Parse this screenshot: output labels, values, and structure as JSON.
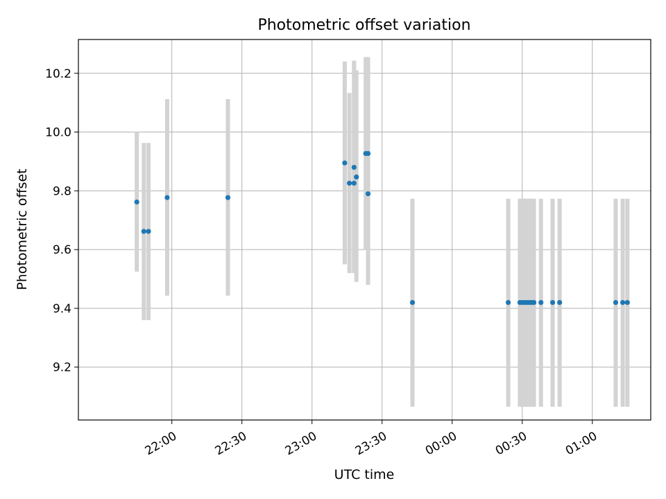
{
  "chart_data": {
    "type": "scatter",
    "title": "Photometric offset variation",
    "xlabel": "UTC time",
    "ylabel": "Photometric offset",
    "x_unit": "UTC time (HH:MM)",
    "xlim": [
      "21:20",
      "01:25"
    ],
    "ylim": [
      9.02,
      10.315
    ],
    "xticks": [
      "22:00",
      "22:30",
      "23:00",
      "23:30",
      "00:00",
      "00:30",
      "01:00"
    ],
    "yticks": [
      9.2,
      9.4,
      9.6,
      9.8,
      10.0,
      10.2
    ],
    "ytick_labels": [
      "9.2",
      "9.4",
      "9.6",
      "9.8",
      "10.0",
      "10.2"
    ],
    "grid": true,
    "colors": {
      "marker": "#1f77b4",
      "errorbar": "#d3d3d3",
      "grid": "#b0b0b0"
    },
    "points": [
      {
        "t": "21:45",
        "y": 9.762,
        "lo": 9.525,
        "hi": 10.0
      },
      {
        "t": "21:48",
        "y": 9.662,
        "lo": 9.36,
        "hi": 9.963
      },
      {
        "t": "21:50",
        "y": 9.662,
        "lo": 9.36,
        "hi": 9.963
      },
      {
        "t": "21:58",
        "y": 9.777,
        "lo": 9.443,
        "hi": 10.112
      },
      {
        "t": "22:24",
        "y": 9.777,
        "lo": 9.443,
        "hi": 10.112
      },
      {
        "t": "23:14",
        "y": 9.895,
        "lo": 9.55,
        "hi": 10.24
      },
      {
        "t": "23:16",
        "y": 9.826,
        "lo": 9.52,
        "hi": 10.133
      },
      {
        "t": "23:18",
        "y": 9.826,
        "lo": 9.52,
        "hi": 10.243
      },
      {
        "t": "23:18",
        "y": 9.88,
        "lo": 9.52,
        "hi": 10.243
      },
      {
        "t": "23:19",
        "y": 9.847,
        "lo": 9.49,
        "hi": 10.21
      },
      {
        "t": "23:23",
        "y": 9.927,
        "lo": 9.6,
        "hi": 10.255
      },
      {
        "t": "23:24",
        "y": 9.927,
        "lo": 9.6,
        "hi": 10.255
      },
      {
        "t": "23:24",
        "y": 9.79,
        "lo": 9.48,
        "hi": 10.1
      },
      {
        "t": "23:43",
        "y": 9.42,
        "lo": 9.065,
        "hi": 9.773
      },
      {
        "t": "00:24",
        "y": 9.42,
        "lo": 9.065,
        "hi": 9.773
      },
      {
        "t": "00:29",
        "y": 9.42,
        "lo": 9.065,
        "hi": 9.773
      },
      {
        "t": "00:30",
        "y": 9.42,
        "lo": 9.065,
        "hi": 9.773
      },
      {
        "t": "00:31",
        "y": 9.42,
        "lo": 9.065,
        "hi": 9.773
      },
      {
        "t": "00:32",
        "y": 9.42,
        "lo": 9.065,
        "hi": 9.773
      },
      {
        "t": "00:33",
        "y": 9.42,
        "lo": 9.065,
        "hi": 9.773
      },
      {
        "t": "00:34",
        "y": 9.42,
        "lo": 9.065,
        "hi": 9.773
      },
      {
        "t": "00:35",
        "y": 9.42,
        "lo": 9.065,
        "hi": 9.773
      },
      {
        "t": "00:38",
        "y": 9.42,
        "lo": 9.065,
        "hi": 9.773
      },
      {
        "t": "00:43",
        "y": 9.42,
        "lo": 9.065,
        "hi": 9.773
      },
      {
        "t": "00:46",
        "y": 9.42,
        "lo": 9.065,
        "hi": 9.773
      },
      {
        "t": "01:10",
        "y": 9.42,
        "lo": 9.065,
        "hi": 9.773
      },
      {
        "t": "01:13",
        "y": 9.42,
        "lo": 9.065,
        "hi": 9.773
      },
      {
        "t": "01:15",
        "y": 9.42,
        "lo": 9.065,
        "hi": 9.773
      }
    ]
  }
}
